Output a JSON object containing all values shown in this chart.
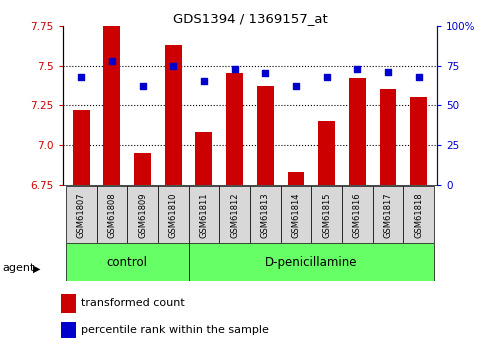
{
  "title": "GDS1394 / 1369157_at",
  "samples": [
    "GSM61807",
    "GSM61808",
    "GSM61809",
    "GSM61810",
    "GSM61811",
    "GSM61812",
    "GSM61813",
    "GSM61814",
    "GSM61815",
    "GSM61816",
    "GSM61817",
    "GSM61818"
  ],
  "bar_values": [
    7.22,
    7.75,
    6.95,
    7.63,
    7.08,
    7.45,
    7.37,
    6.83,
    7.15,
    7.42,
    7.35,
    7.3
  ],
  "dot_values": [
    68,
    78,
    62,
    75,
    65,
    73,
    70,
    62,
    68,
    73,
    71,
    68
  ],
  "ylim_left": [
    6.75,
    7.75
  ],
  "ylim_right": [
    0,
    100
  ],
  "yticks_left": [
    6.75,
    7.0,
    7.25,
    7.5,
    7.75
  ],
  "yticks_right": [
    0,
    25,
    50,
    75,
    100
  ],
  "bar_color": "#cc0000",
  "dot_color": "#0000cc",
  "control_samples": 4,
  "group1_label": "control",
  "group2_label": "D-penicillamine",
  "group_bg_color": "#66ff66",
  "tick_label_bg": "#d8d8d8",
  "legend_bar_label": "transformed count",
  "legend_dot_label": "percentile rank within the sample",
  "agent_label": "agent",
  "figsize": [
    4.83,
    3.45
  ],
  "dpi": 100
}
